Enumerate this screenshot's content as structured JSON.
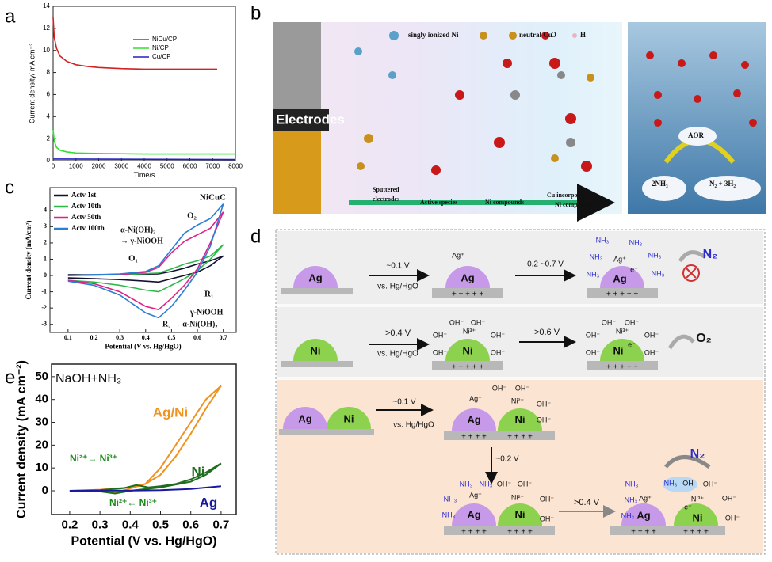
{
  "panel_labels": [
    "a",
    "b",
    "c",
    "d",
    "e"
  ],
  "chart_data": [
    {
      "type": "line",
      "xlabel": "Time/s",
      "ylabel": "Current density/ mA cm⁻²",
      "xlim": [
        0,
        8000
      ],
      "xticks": [
        0,
        1000,
        2000,
        3000,
        4000,
        5000,
        6000,
        7000,
        8000
      ],
      "ylim": [
        0,
        14
      ],
      "yticks": [
        0,
        2,
        4,
        6,
        8,
        10,
        12,
        14
      ],
      "legend": "upper right",
      "series": [
        {
          "name": "NiCu/CP",
          "color": "#d42020",
          "x": [
            0,
            50,
            150,
            300,
            600,
            1000,
            1500,
            2000,
            3000,
            4000,
            5000,
            6000,
            7200
          ],
          "values": [
            13,
            11.2,
            10.2,
            9.5,
            9.0,
            8.7,
            8.55,
            8.45,
            8.35,
            8.3,
            8.3,
            8.3,
            8.3
          ]
        },
        {
          "name": "Ni/CP",
          "color": "#30e030",
          "x": [
            0,
            50,
            150,
            300,
            600,
            1000,
            2000,
            4000,
            6000,
            8000
          ],
          "values": [
            2.8,
            1.8,
            1.2,
            0.95,
            0.8,
            0.7,
            0.65,
            0.6,
            0.6,
            0.6
          ]
        },
        {
          "name": "Cu/CP",
          "color": "#2020c0",
          "x": [
            0,
            8000
          ],
          "values": [
            0.15,
            0.1
          ]
        }
      ]
    },
    {
      "type": "line",
      "xlabel": "Potential (V vs. Hg/HgO)",
      "ylabel": "Current density (mA/cm²)",
      "xlim": [
        0.03,
        0.75
      ],
      "xticks": [
        0.1,
        0.2,
        0.3,
        0.4,
        0.5,
        0.6,
        0.7
      ],
      "ylim": [
        -3.5,
        5.4
      ],
      "yticks": [
        -3,
        -2,
        -1,
        0,
        1,
        2,
        3,
        4
      ],
      "legend": "upper left",
      "series": [
        {
          "name": "Actv 1st",
          "color": "#111133",
          "x": [
            0.1,
            0.3,
            0.45,
            0.5,
            0.55,
            0.6,
            0.65,
            0.7,
            0.65,
            0.6,
            0.55,
            0.5,
            0.45,
            0.4,
            0.3,
            0.2,
            0.1
          ],
          "values": [
            0.05,
            0.05,
            0.1,
            0.25,
            0.45,
            0.7,
            0.9,
            1.2,
            0.6,
            0.2,
            0,
            -0.2,
            -0.4,
            -0.35,
            -0.25,
            -0.2,
            -0.15
          ]
        },
        {
          "name": "Actv 10th",
          "color": "#2db84a",
          "x": [
            0.1,
            0.3,
            0.45,
            0.5,
            0.55,
            0.6,
            0.65,
            0.7,
            0.65,
            0.6,
            0.55,
            0.5,
            0.45,
            0.4,
            0.3,
            0.2,
            0.1
          ],
          "values": [
            0,
            0.05,
            0.15,
            0.4,
            0.7,
            0.9,
            1.2,
            1.9,
            1.0,
            0.3,
            -0.2,
            -0.6,
            -1.0,
            -0.9,
            -0.6,
            -0.4,
            -0.3
          ]
        },
        {
          "name": "Actv 50th",
          "color": "#e0208a",
          "x": [
            0.1,
            0.3,
            0.4,
            0.45,
            0.5,
            0.55,
            0.6,
            0.65,
            0.7,
            0.65,
            0.6,
            0.55,
            0.5,
            0.45,
            0.4,
            0.3,
            0.2,
            0.1
          ],
          "values": [
            0,
            0.05,
            0.2,
            0.5,
            1.4,
            2.1,
            2.5,
            2.9,
            3.9,
            2.0,
            0.4,
            -0.6,
            -1.4,
            -2.1,
            -1.9,
            -1.0,
            -0.5,
            -0.3
          ]
        },
        {
          "name": "Actv 100th",
          "color": "#2a7fd4",
          "x": [
            0.1,
            0.3,
            0.4,
            0.45,
            0.5,
            0.55,
            0.6,
            0.65,
            0.7,
            0.65,
            0.6,
            0.55,
            0.5,
            0.45,
            0.4,
            0.3,
            0.2,
            0.1
          ],
          "values": [
            0,
            0.1,
            0.25,
            0.6,
            1.6,
            2.6,
            3.1,
            3.5,
            4.4,
            1.8,
            0.2,
            -0.9,
            -1.9,
            -2.6,
            -2.3,
            -1.2,
            -0.6,
            -0.35
          ]
        }
      ],
      "annotations": [
        "NiCuC",
        "O₂",
        "α-Ni(OH)₂",
        "→ γ-NiOOH",
        "O₁",
        "R₁",
        "γ-NiOOH",
        "R₂ → α-Ni(OH)₂"
      ]
    },
    {
      "type": "line",
      "xlabel": "Potential (V vs. Hg/HgO)",
      "ylabel": "Current density (mA cm⁻²)",
      "xlim": [
        0.14,
        0.75
      ],
      "xticks": [
        0.2,
        0.3,
        0.4,
        0.5,
        0.6,
        0.7
      ],
      "ylim": [
        -10.4,
        55.5
      ],
      "yticks": [
        0,
        10,
        20,
        30,
        40,
        50
      ],
      "legend": "inline",
      "series": [
        {
          "name": "Ag/Ni",
          "color": "#f0921e",
          "x": [
            0.2,
            0.3,
            0.4,
            0.45,
            0.5,
            0.55,
            0.6,
            0.65,
            0.7,
            0.65,
            0.6,
            0.55,
            0.5,
            0.45,
            0.4,
            0.35,
            0.3,
            0.2
          ],
          "values": [
            0,
            0.5,
            1.5,
            3,
            7,
            15,
            25,
            36,
            46,
            40,
            30,
            20,
            10,
            3,
            1,
            -1,
            0,
            0
          ]
        },
        {
          "name": "Ni",
          "color": "#1e6e1e",
          "x": [
            0.2,
            0.3,
            0.38,
            0.42,
            0.46,
            0.5,
            0.55,
            0.6,
            0.65,
            0.7,
            0.65,
            0.6,
            0.5,
            0.4,
            0.35,
            0.3,
            0.2
          ],
          "values": [
            0,
            0.3,
            1.2,
            2.5,
            1.5,
            2,
            3,
            5,
            8,
            12,
            7,
            4,
            1.5,
            0,
            -1.2,
            -0.3,
            0
          ]
        },
        {
          "name": "Ag",
          "color": "#1a1aa0",
          "x": [
            0.2,
            0.4,
            0.5,
            0.6,
            0.7
          ],
          "values": [
            0,
            0.1,
            0.3,
            0.8,
            2
          ]
        }
      ],
      "annotations": [
        "NaOH+NH₃",
        "Ni²⁺→ Ni³⁺",
        "Ni²⁺← Ni³⁺"
      ]
    }
  ],
  "diagram_b": {
    "labels": [
      "singly ionized Ni",
      "neutral Cu",
      "O",
      "H",
      "Electrodes",
      "Sputtered",
      "electrodes",
      "Active species",
      "Ni compounds",
      "Cu incorporated",
      "Ni compounds",
      "AOR",
      "2NH₃",
      "N₂ + 3H₂"
    ]
  },
  "diagram_d": {
    "labels": [
      "Ag",
      "~0.1 V",
      "vs. Hg/HgO",
      "Ag",
      "Ag⁺",
      "+ + + + +",
      "0.2 ~0.7 V",
      "Ag",
      "Ag⁺",
      "e⁻",
      "NH₃",
      "NH₃",
      "NH₃",
      "NH₃",
      "NH₃",
      "NH₃",
      "N₂",
      "+ + + + +",
      "Ni",
      "&gt;0.4 V",
      "vs. Hg/HgO",
      "Ni",
      "Ni³⁺",
      "OH⁻",
      "OH⁻",
      "OH⁻",
      "OH⁻",
      "OH⁻",
      "OH⁻",
      "+ + + + +",
      "&gt;0.6 V",
      "Ni",
      "Ni³⁺",
      "e⁻",
      "OH⁻",
      "OH⁻",
      "OH⁻",
      "OH⁻",
      "OH⁻",
      "OH⁻",
      "O₂",
      "+ + + + +",
      "Ag",
      "Ni",
      "~0.1 V",
      "vs. Hg/HgO",
      "Ag",
      "Ni",
      "Ag⁺",
      "Ni²⁺",
      "OH⁻",
      "OH⁻",
      "OH⁻",
      "OH⁻",
      "+ + + +",
      "+ + + +",
      "~0.2 V",
      "Ag",
      "Ni",
      "Ag⁺",
      "Ni²⁺",
      "NH₃",
      "NH₃",
      "NH₃",
      "NH₃",
      "OH⁻",
      "OH⁻",
      "OH⁻",
      "OH⁻",
      "+ + + +",
      "+ + + +",
      "&gt;0.4 V",
      "Ag",
      "Ni",
      "Ag⁺",
      "Ni³⁺",
      "e⁻",
      "NH₃",
      "OH",
      "OH⁻",
      "OH⁻",
      "OH⁻",
      "NH₃",
      "NH₃",
      "NH₃",
      "N₂",
      "+ + + +",
      "+ + + +"
    ]
  }
}
